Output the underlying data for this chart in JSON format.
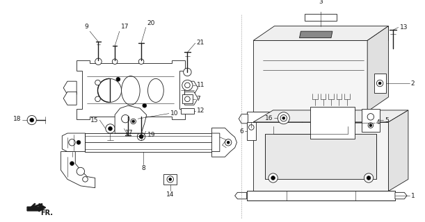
{
  "bg_color": "#ffffff",
  "line_color": "#1a1a1a",
  "figsize": [
    6.11,
    3.2
  ],
  "dpi": 100,
  "fs_label": 5.5,
  "lw_main": 0.6,
  "lw_thin": 0.4,
  "lw_thick": 1.0
}
